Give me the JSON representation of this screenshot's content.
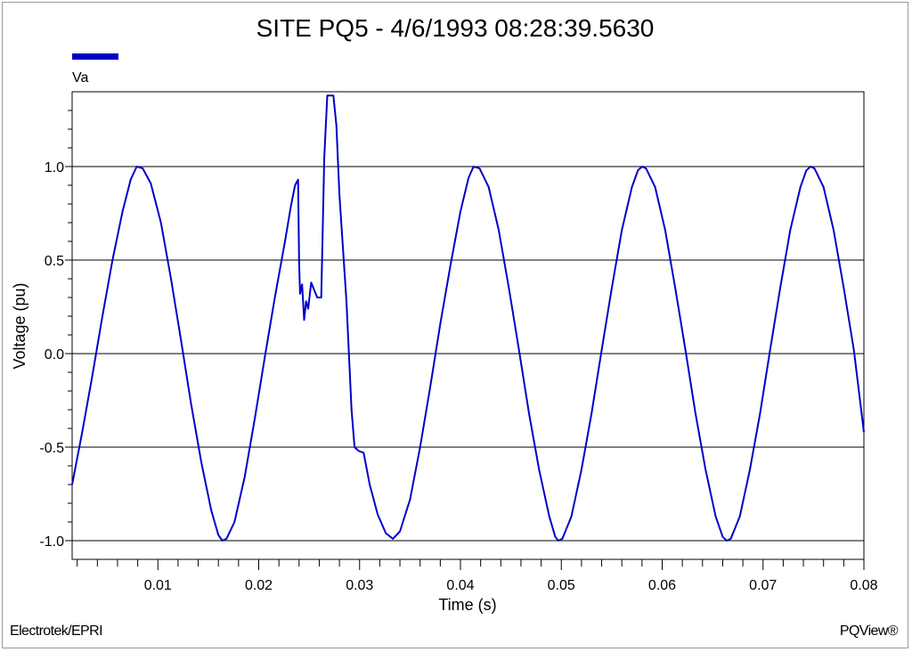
{
  "chart_data": {
    "type": "line",
    "title": "SITE PQ5 - 4/6/1993 08:28:39.5630",
    "xlabel": "Time (s)",
    "ylabel": "Voltage (pu)",
    "xlim": [
      0.0015,
      0.08
    ],
    "ylim": [
      -1.1,
      1.4
    ],
    "grid": "horizontal",
    "legend": "top-left",
    "x_ticks": [
      "0.01",
      "0.02",
      "0.03",
      "0.04",
      "0.05",
      "0.06",
      "0.07",
      "0.08"
    ],
    "y_ticks": [
      "1.0",
      "0.5",
      "0.0",
      "-0.5",
      "-1.0"
    ],
    "series": [
      {
        "name": "Va",
        "color": "#0000c8",
        "points": [
          [
            0.0015,
            -0.7
          ],
          [
            0.0025,
            -0.42
          ],
          [
            0.0035,
            -0.12
          ],
          [
            0.0045,
            0.2
          ],
          [
            0.0055,
            0.5
          ],
          [
            0.0065,
            0.76
          ],
          [
            0.0073,
            0.93
          ],
          [
            0.0079,
            1.0
          ],
          [
            0.0085,
            0.99
          ],
          [
            0.0093,
            0.91
          ],
          [
            0.0103,
            0.7
          ],
          [
            0.0113,
            0.4
          ],
          [
            0.0123,
            0.07
          ],
          [
            0.0133,
            -0.27
          ],
          [
            0.0143,
            -0.58
          ],
          [
            0.0153,
            -0.84
          ],
          [
            0.016,
            -0.97
          ],
          [
            0.0164,
            -1.0
          ],
          [
            0.0168,
            -0.99
          ],
          [
            0.0176,
            -0.9
          ],
          [
            0.0186,
            -0.66
          ],
          [
            0.0196,
            -0.35
          ],
          [
            0.0206,
            -0.02
          ],
          [
            0.0216,
            0.3
          ],
          [
            0.0226,
            0.6
          ],
          [
            0.0232,
            0.79
          ],
          [
            0.0236,
            0.9
          ],
          [
            0.0239,
            0.93
          ],
          [
            0.024,
            0.5
          ],
          [
            0.0241,
            0.32
          ],
          [
            0.0243,
            0.37
          ],
          [
            0.0245,
            0.18
          ],
          [
            0.0247,
            0.28
          ],
          [
            0.0249,
            0.24
          ],
          [
            0.0252,
            0.38
          ],
          [
            0.0255,
            0.34
          ],
          [
            0.0258,
            0.3
          ],
          [
            0.0262,
            0.3
          ],
          [
            0.0265,
            1.05
          ],
          [
            0.0268,
            1.38
          ],
          [
            0.0274,
            1.38
          ],
          [
            0.0277,
            1.22
          ],
          [
            0.028,
            0.85
          ],
          [
            0.0287,
            0.28
          ],
          [
            0.0292,
            -0.3
          ],
          [
            0.0295,
            -0.5
          ],
          [
            0.0299,
            -0.52
          ],
          [
            0.0304,
            -0.53
          ],
          [
            0.031,
            -0.7
          ],
          [
            0.0318,
            -0.86
          ],
          [
            0.0326,
            -0.96
          ],
          [
            0.0333,
            -0.99
          ],
          [
            0.034,
            -0.95
          ],
          [
            0.035,
            -0.78
          ],
          [
            0.036,
            -0.5
          ],
          [
            0.037,
            -0.18
          ],
          [
            0.038,
            0.16
          ],
          [
            0.039,
            0.47
          ],
          [
            0.04,
            0.76
          ],
          [
            0.0408,
            0.94
          ],
          [
            0.0413,
            1.0
          ],
          [
            0.0419,
            0.99
          ],
          [
            0.0428,
            0.89
          ],
          [
            0.0438,
            0.66
          ],
          [
            0.0448,
            0.35
          ],
          [
            0.0458,
            0.02
          ],
          [
            0.0468,
            -0.32
          ],
          [
            0.0478,
            -0.62
          ],
          [
            0.0488,
            -0.87
          ],
          [
            0.0494,
            -0.98
          ],
          [
            0.0497,
            -1.0
          ],
          [
            0.0501,
            -0.99
          ],
          [
            0.051,
            -0.87
          ],
          [
            0.052,
            -0.62
          ],
          [
            0.053,
            -0.32
          ],
          [
            0.054,
            0.02
          ],
          [
            0.055,
            0.35
          ],
          [
            0.056,
            0.66
          ],
          [
            0.057,
            0.89
          ],
          [
            0.0576,
            0.98
          ],
          [
            0.058,
            1.0
          ],
          [
            0.0584,
            0.99
          ],
          [
            0.0593,
            0.89
          ],
          [
            0.0603,
            0.66
          ],
          [
            0.0613,
            0.35
          ],
          [
            0.0623,
            0.02
          ],
          [
            0.0633,
            -0.32
          ],
          [
            0.0643,
            -0.62
          ],
          [
            0.0653,
            -0.87
          ],
          [
            0.066,
            -0.98
          ],
          [
            0.0664,
            -1.0
          ],
          [
            0.0668,
            -0.99
          ],
          [
            0.0677,
            -0.87
          ],
          [
            0.0687,
            -0.62
          ],
          [
            0.0697,
            -0.32
          ],
          [
            0.0707,
            0.02
          ],
          [
            0.0717,
            0.35
          ],
          [
            0.0727,
            0.66
          ],
          [
            0.0737,
            0.89
          ],
          [
            0.0743,
            0.98
          ],
          [
            0.0747,
            1.0
          ],
          [
            0.0751,
            0.99
          ],
          [
            0.076,
            0.89
          ],
          [
            0.077,
            0.66
          ],
          [
            0.078,
            0.35
          ],
          [
            0.079,
            0.02
          ],
          [
            0.08,
            -0.42
          ]
        ]
      }
    ]
  },
  "footer": {
    "left": "Electrotek/EPRI",
    "right": "PQView®"
  },
  "colors": {
    "series": "#0000c8",
    "grid": "#000000",
    "axis": "#000000"
  }
}
